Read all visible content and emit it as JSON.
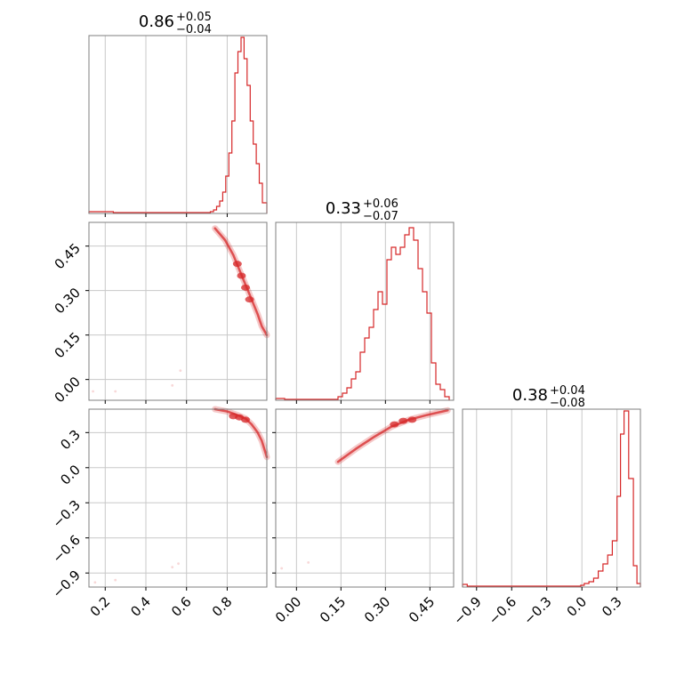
{
  "chart_data": {
    "type": "corner",
    "title": "",
    "grid": true,
    "color": "#d62728",
    "panels": [
      {
        "id": "hist-0",
        "kind": "hist",
        "title": {
          "value": "0.86",
          "plus": "+0.05",
          "minus": "−0.04"
        },
        "xlim": [
          0.12,
          0.995
        ],
        "ylim": [
          0,
          1.0
        ],
        "xgrid": [
          0.2,
          0.4,
          0.6,
          0.8
        ],
        "bins": [
          [
            0.12,
            0.01
          ],
          [
            0.24,
            0.005
          ],
          [
            0.66,
            0.005
          ],
          [
            0.717,
            0.01
          ],
          [
            0.733,
            0.02
          ],
          [
            0.748,
            0.04
          ],
          [
            0.763,
            0.07
          ],
          [
            0.778,
            0.12
          ],
          [
            0.793,
            0.21
          ],
          [
            0.808,
            0.34
          ],
          [
            0.823,
            0.52
          ],
          [
            0.838,
            0.79
          ],
          [
            0.853,
            0.91
          ],
          [
            0.868,
            0.99
          ],
          [
            0.883,
            0.87
          ],
          [
            0.898,
            0.72
          ],
          [
            0.913,
            0.52
          ],
          [
            0.928,
            0.39
          ],
          [
            0.943,
            0.28
          ],
          [
            0.958,
            0.17
          ],
          [
            0.973,
            0.06
          ],
          [
            0.988,
            0.06
          ]
        ],
        "hist_end": 0.995
      },
      {
        "id": "scatter-1-0",
        "kind": "curve",
        "xlim": [
          0.12,
          0.995
        ],
        "ylim": [
          -0.07,
          0.53
        ],
        "xgrid": [
          0.2,
          0.4,
          0.6,
          0.8
        ],
        "ygrid": [
          0.0,
          0.15,
          0.3,
          0.45
        ],
        "yticks": [
          {
            "value": 0.0,
            "label": "0.00"
          },
          {
            "value": 0.15,
            "label": "0.15"
          },
          {
            "value": 0.3,
            "label": "0.30"
          },
          {
            "value": 0.45,
            "label": "0.45"
          }
        ],
        "curve": [
          [
            0.74,
            0.51
          ],
          [
            0.79,
            0.47
          ],
          [
            0.83,
            0.42
          ],
          [
            0.86,
            0.37
          ],
          [
            0.89,
            0.32
          ],
          [
            0.92,
            0.27
          ],
          [
            0.95,
            0.22
          ],
          [
            0.97,
            0.18
          ],
          [
            0.995,
            0.15
          ]
        ],
        "blobs": [
          [
            0.85,
            0.39
          ],
          [
            0.87,
            0.35
          ],
          [
            0.89,
            0.31
          ],
          [
            0.91,
            0.27
          ]
        ],
        "outliers": [
          [
            0.14,
            -0.04
          ],
          [
            0.25,
            -0.04
          ],
          [
            0.53,
            -0.02
          ],
          [
            0.57,
            0.03
          ]
        ]
      },
      {
        "id": "hist-1",
        "kind": "hist",
        "title": {
          "value": "0.33",
          "plus": "+0.06",
          "minus": "−0.07"
        },
        "xlim": [
          -0.07,
          0.53
        ],
        "ylim": [
          0,
          1.0
        ],
        "xgrid": [
          0.0,
          0.15,
          0.3,
          0.45
        ],
        "bins": [
          [
            -0.07,
            0.01
          ],
          [
            -0.04,
            0.005
          ],
          [
            0.14,
            0.02
          ],
          [
            0.155,
            0.04
          ],
          [
            0.17,
            0.07
          ],
          [
            0.185,
            0.12
          ],
          [
            0.2,
            0.16
          ],
          [
            0.215,
            0.27
          ],
          [
            0.23,
            0.35
          ],
          [
            0.245,
            0.41
          ],
          [
            0.26,
            0.51
          ],
          [
            0.275,
            0.61
          ],
          [
            0.29,
            0.54
          ],
          [
            0.305,
            0.79
          ],
          [
            0.32,
            0.86
          ],
          [
            0.335,
            0.82
          ],
          [
            0.35,
            0.86
          ],
          [
            0.365,
            0.93
          ],
          [
            0.38,
            0.97
          ],
          [
            0.395,
            0.9
          ],
          [
            0.41,
            0.74
          ],
          [
            0.425,
            0.61
          ],
          [
            0.44,
            0.49
          ],
          [
            0.455,
            0.21
          ],
          [
            0.47,
            0.09
          ],
          [
            0.485,
            0.06
          ],
          [
            0.5,
            0.02
          ]
        ],
        "hist_end": 0.515
      },
      {
        "id": "scatter-2-0",
        "kind": "curve",
        "xlim": [
          0.12,
          0.995
        ],
        "ylim": [
          -1.02,
          0.5
        ],
        "xgrid": [
          0.2,
          0.4,
          0.6,
          0.8
        ],
        "ygrid": [
          -0.9,
          -0.6,
          -0.3,
          0.0,
          0.3
        ],
        "yticks": [
          {
            "value": -0.9,
            "label": "−0.9"
          },
          {
            "value": -0.6,
            "label": "−0.6"
          },
          {
            "value": -0.3,
            "label": "−0.3"
          },
          {
            "value": 0.0,
            "label": "0.0"
          },
          {
            "value": 0.3,
            "label": "0.3"
          }
        ],
        "xticks": [
          {
            "value": 0.2,
            "label": "0.2"
          },
          {
            "value": 0.4,
            "label": "0.4"
          },
          {
            "value": 0.6,
            "label": "0.6"
          },
          {
            "value": 0.8,
            "label": "0.8"
          }
        ],
        "curve": [
          [
            0.74,
            0.5
          ],
          [
            0.8,
            0.48
          ],
          [
            0.85,
            0.45
          ],
          [
            0.89,
            0.42
          ],
          [
            0.92,
            0.37
          ],
          [
            0.95,
            0.3
          ],
          [
            0.97,
            0.23
          ],
          [
            0.995,
            0.09
          ]
        ],
        "blobs": [
          [
            0.83,
            0.44
          ],
          [
            0.86,
            0.43
          ],
          [
            0.89,
            0.41
          ]
        ],
        "outliers": [
          [
            0.15,
            -0.98
          ],
          [
            0.25,
            -0.96
          ],
          [
            0.53,
            -0.85
          ],
          [
            0.56,
            -0.82
          ]
        ]
      },
      {
        "id": "scatter-2-1",
        "kind": "curve",
        "xlim": [
          -0.07,
          0.53
        ],
        "ylim": [
          -1.02,
          0.5
        ],
        "xgrid": [
          0.0,
          0.15,
          0.3,
          0.45
        ],
        "ygrid": [
          -0.9,
          -0.6,
          -0.3,
          0.0,
          0.3
        ],
        "xticks": [
          {
            "value": 0.0,
            "label": "0.00"
          },
          {
            "value": 0.15,
            "label": "0.15"
          },
          {
            "value": 0.3,
            "label": "0.30"
          },
          {
            "value": 0.45,
            "label": "0.45"
          }
        ],
        "curve": [
          [
            0.14,
            0.05
          ],
          [
            0.2,
            0.16
          ],
          [
            0.26,
            0.26
          ],
          [
            0.32,
            0.35
          ],
          [
            0.38,
            0.41
          ],
          [
            0.44,
            0.45
          ],
          [
            0.51,
            0.49
          ]
        ],
        "blobs": [
          [
            0.33,
            0.37
          ],
          [
            0.36,
            0.4
          ],
          [
            0.39,
            0.41
          ]
        ],
        "outliers": [
          [
            -0.05,
            -0.86
          ],
          [
            0.04,
            -0.81
          ]
        ]
      },
      {
        "id": "hist-2",
        "kind": "hist",
        "title": {
          "value": "0.38",
          "plus": "+0.04",
          "minus": "−0.08"
        },
        "xlim": [
          -1.02,
          0.5
        ],
        "ylim": [
          0,
          1.0
        ],
        "xgrid": [
          -0.9,
          -0.6,
          -0.3,
          0.0,
          0.3
        ],
        "xticks": [
          {
            "value": -0.9,
            "label": "−0.9"
          },
          {
            "value": -0.6,
            "label": "−0.6"
          },
          {
            "value": -0.3,
            "label": "−0.3"
          },
          {
            "value": 0.0,
            "label": "0.0"
          },
          {
            "value": 0.3,
            "label": "0.3"
          }
        ],
        "bins": [
          [
            -1.02,
            0.015
          ],
          [
            -0.98,
            0.005
          ],
          [
            -0.01,
            0.01
          ],
          [
            0.02,
            0.02
          ],
          [
            0.06,
            0.03
          ],
          [
            0.1,
            0.05
          ],
          [
            0.14,
            0.09
          ],
          [
            0.18,
            0.13
          ],
          [
            0.22,
            0.18
          ],
          [
            0.26,
            0.26
          ],
          [
            0.3,
            0.51
          ],
          [
            0.33,
            0.86
          ],
          [
            0.36,
            0.99
          ],
          [
            0.4,
            0.61
          ],
          [
            0.44,
            0.12
          ],
          [
            0.47,
            0.02
          ]
        ],
        "hist_end": 0.5
      }
    ]
  }
}
